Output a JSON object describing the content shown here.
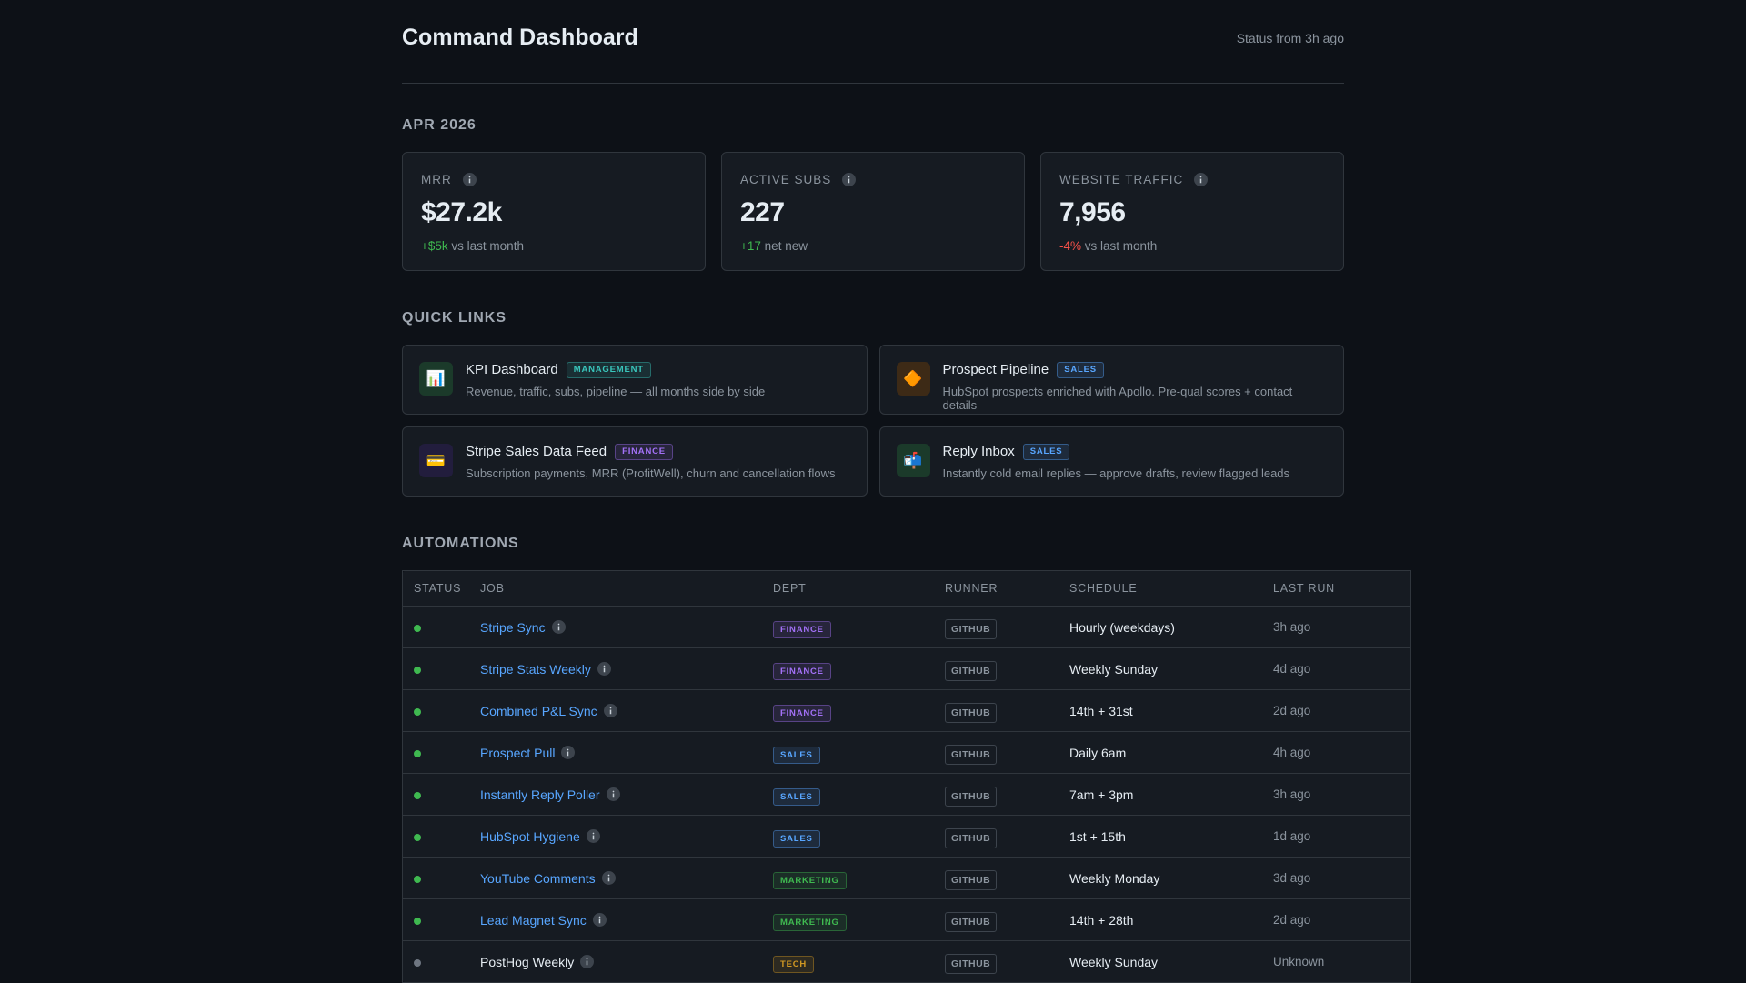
{
  "header": {
    "title": "Command Dashboard",
    "status": "Status from 3h ago"
  },
  "period": {
    "heading": "APR 2026",
    "metrics": [
      {
        "label": "MRR",
        "value": "$27.2k",
        "delta": "+$5k",
        "delta_color": "#3fb950",
        "note": "vs last month"
      },
      {
        "label": "ACTIVE SUBS",
        "value": "227",
        "delta": "+17",
        "delta_color": "#3fb950",
        "note": "net new"
      },
      {
        "label": "WEBSITE TRAFFIC",
        "value": "7,956",
        "delta": "-4%",
        "delta_color": "#f85149",
        "note": "vs last month"
      }
    ]
  },
  "quick_links": {
    "heading": "QUICK LINKS",
    "items": [
      {
        "icon": "📊",
        "icon_bg": "#1b3a2a",
        "title": "KPI Dashboard",
        "tag": {
          "label": "MANAGEMENT",
          "color": "#39c5bb"
        },
        "description": "Revenue, traffic, subs, pipeline — all months side by side"
      },
      {
        "icon": "🔶",
        "icon_bg": "#3d2a16",
        "title": "Prospect Pipeline",
        "tag": {
          "label": "SALES",
          "color": "#58a6ff"
        },
        "description": "HubSpot prospects enriched with Apollo. Pre-qual scores + contact details"
      },
      {
        "icon": "💳",
        "icon_bg": "#221d3d",
        "title": "Stripe Sales Data Feed",
        "tag": {
          "label": "FINANCE",
          "color": "#a371f7"
        },
        "description": "Subscription payments, MRR (ProfitWell), churn and cancellation flows"
      },
      {
        "icon": "📬",
        "icon_bg": "#1b3a2a",
        "title": "Reply Inbox",
        "tag": {
          "label": "SALES",
          "color": "#58a6ff"
        },
        "description": "Instantly cold email replies — approve drafts, review flagged leads"
      }
    ]
  },
  "automations": {
    "heading": "AUTOMATIONS",
    "columns": [
      "STATUS",
      "JOB",
      "DEPT",
      "RUNNER",
      "SCHEDULE",
      "LAST RUN"
    ],
    "rows": [
      {
        "status_color": "#3fb950",
        "link": true,
        "job": "Stripe Sync",
        "dept": {
          "label": "FINANCE",
          "color": "#a371f7"
        },
        "runner": "GITHUB",
        "schedule": "Hourly (weekdays)",
        "last_run": "3h ago"
      },
      {
        "status_color": "#3fb950",
        "link": true,
        "job": "Stripe Stats Weekly",
        "dept": {
          "label": "FINANCE",
          "color": "#a371f7"
        },
        "runner": "GITHUB",
        "schedule": "Weekly Sunday",
        "last_run": "4d ago"
      },
      {
        "status_color": "#3fb950",
        "link": true,
        "job": "Combined P&L Sync",
        "dept": {
          "label": "FINANCE",
          "color": "#a371f7"
        },
        "runner": "GITHUB",
        "schedule": "14th + 31st",
        "last_run": "2d ago"
      },
      {
        "status_color": "#3fb950",
        "link": true,
        "job": "Prospect Pull",
        "dept": {
          "label": "SALES",
          "color": "#58a6ff"
        },
        "runner": "GITHUB",
        "schedule": "Daily 6am",
        "last_run": "4h ago"
      },
      {
        "status_color": "#3fb950",
        "link": true,
        "job": "Instantly Reply Poller",
        "dept": {
          "label": "SALES",
          "color": "#58a6ff"
        },
        "runner": "GITHUB",
        "schedule": "7am + 3pm",
        "last_run": "3h ago"
      },
      {
        "status_color": "#3fb950",
        "link": true,
        "job": "HubSpot Hygiene",
        "dept": {
          "label": "SALES",
          "color": "#58a6ff"
        },
        "runner": "GITHUB",
        "schedule": "1st + 15th",
        "last_run": "1d ago"
      },
      {
        "status_color": "#3fb950",
        "link": true,
        "job": "YouTube Comments",
        "dept": {
          "label": "MARKETING",
          "color": "#3fb950"
        },
        "runner": "GITHUB",
        "schedule": "Weekly Monday",
        "last_run": "3d ago"
      },
      {
        "status_color": "#3fb950",
        "link": true,
        "job": "Lead Magnet Sync",
        "dept": {
          "label": "MARKETING",
          "color": "#3fb950"
        },
        "runner": "GITHUB",
        "schedule": "14th + 28th",
        "last_run": "2d ago"
      },
      {
        "status_color": "#6e7681",
        "link": false,
        "job": "PostHog Weekly",
        "dept": {
          "label": "TECH",
          "color": "#d29922"
        },
        "runner": "GITHUB",
        "schedule": "Weekly Sunday",
        "last_run": "Unknown"
      }
    ]
  }
}
